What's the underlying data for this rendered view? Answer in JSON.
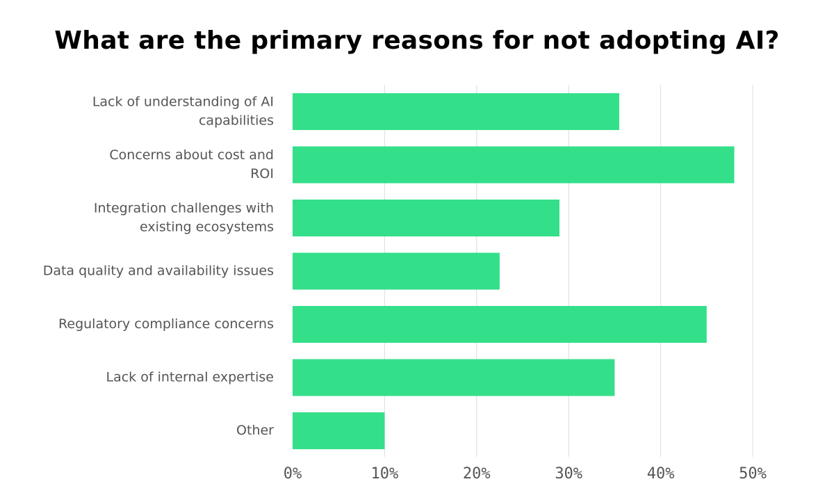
{
  "chart_data": {
    "type": "bar",
    "orientation": "horizontal",
    "title": "What are the primary reasons for not adopting AI?",
    "xlabel": "",
    "ylabel": "",
    "categories": [
      [
        "Lack of understanding of AI",
        "capabilities"
      ],
      [
        "Concerns about cost and",
        "ROI"
      ],
      [
        "Integration challenges with",
        "existing ecosystems"
      ],
      [
        "Data quality and availability issues"
      ],
      [
        "Regulatory compliance concerns"
      ],
      [
        "Lack of internal expertise"
      ],
      [
        "Other"
      ]
    ],
    "values": [
      35.5,
      48,
      29,
      22.5,
      45,
      35,
      10
    ],
    "value_unit": "%",
    "xlim": [
      0,
      50
    ],
    "ticks": [
      0,
      10,
      20,
      30,
      40,
      50
    ],
    "tick_labels": [
      "0%",
      "10%",
      "20%",
      "30%",
      "40%",
      "50%"
    ],
    "grid": "vertical",
    "legend": "none",
    "colors": {
      "bar": "#34df8a",
      "grid": "#dcdcdc",
      "label": "#555555",
      "title": "#000000"
    }
  }
}
